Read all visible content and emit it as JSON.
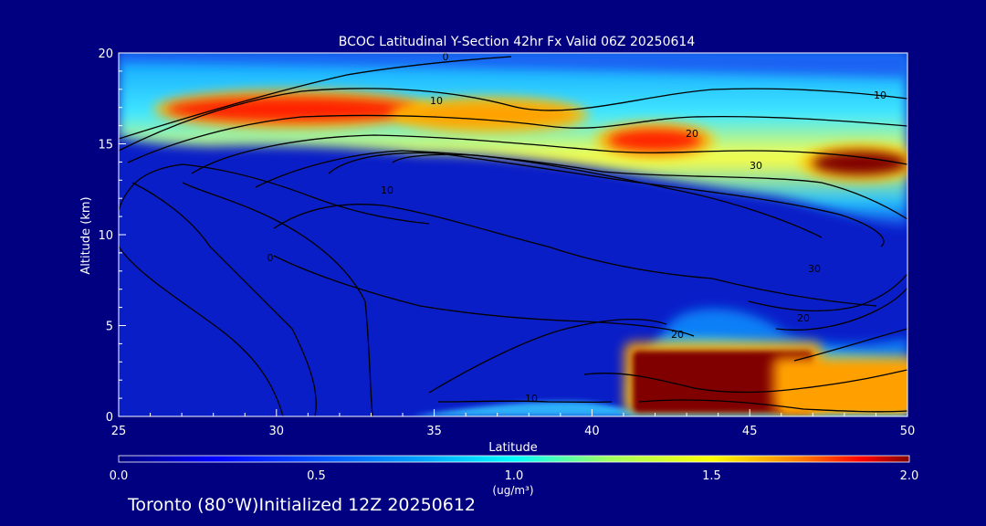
{
  "chart_data": {
    "type": "heatmap",
    "title": "BCOC Latitudinal Y-Section 42hr  Fx Valid 06Z 20250614",
    "xlabel": "Latitude",
    "ylabel": "Altitude (km)",
    "xlim": [
      25,
      50
    ],
    "ylim": [
      0,
      20
    ],
    "x_ticks": [
      "25",
      "30",
      "35",
      "40",
      "45",
      "50"
    ],
    "y_ticks": [
      "0",
      "5",
      "10",
      "15",
      "20"
    ],
    "colorbar": {
      "min": 0.0,
      "max": 2.0,
      "ticks": [
        "0.0",
        "0.5",
        "1.0",
        "1.5",
        "2.0"
      ],
      "units": "(ug/m³)",
      "colors": [
        "#0000a0",
        "#0020ff",
        "#00a0ff",
        "#00ffff",
        "#a0ff60",
        "#ffff00",
        "#ffa000",
        "#ff2000",
        "#800000"
      ]
    },
    "background_color": "#000080",
    "field_base_color": "#0a1ec8",
    "high_concentration_regions": [
      {
        "name": "upper-layer-west",
        "lat_range": [
          26.5,
          34.5
        ],
        "alt_range": [
          16.2,
          17.6
        ],
        "value": 1.7
      },
      {
        "name": "upper-layer-central",
        "lat_range": [
          34,
          39.5
        ],
        "alt_range": [
          16.0,
          17.2
        ],
        "value": 1.5
      },
      {
        "name": "upper-layer-east-a",
        "lat_range": [
          40.5,
          43.5
        ],
        "alt_range": [
          14.6,
          15.8
        ],
        "value": 1.8
      },
      {
        "name": "upper-layer-east-b",
        "lat_range": [
          47,
          50
        ],
        "alt_range": [
          13.3,
          14.6
        ],
        "value": 2.0
      },
      {
        "name": "boundary-layer-plume",
        "lat_range": [
          41.3,
          47
        ],
        "alt_range": [
          0.2,
          3.6
        ],
        "value": 2.0
      },
      {
        "name": "boundary-layer-east",
        "lat_range": [
          46,
          50
        ],
        "alt_range": [
          0.2,
          2.8
        ],
        "value": 1.5
      }
    ],
    "contour_labels": [
      "0",
      "10",
      "20",
      "30",
      "10",
      "20",
      "30",
      "20",
      "10",
      "0",
      "10"
    ]
  },
  "footer_text": "Toronto (80°W)Initialized 12Z 20250612"
}
